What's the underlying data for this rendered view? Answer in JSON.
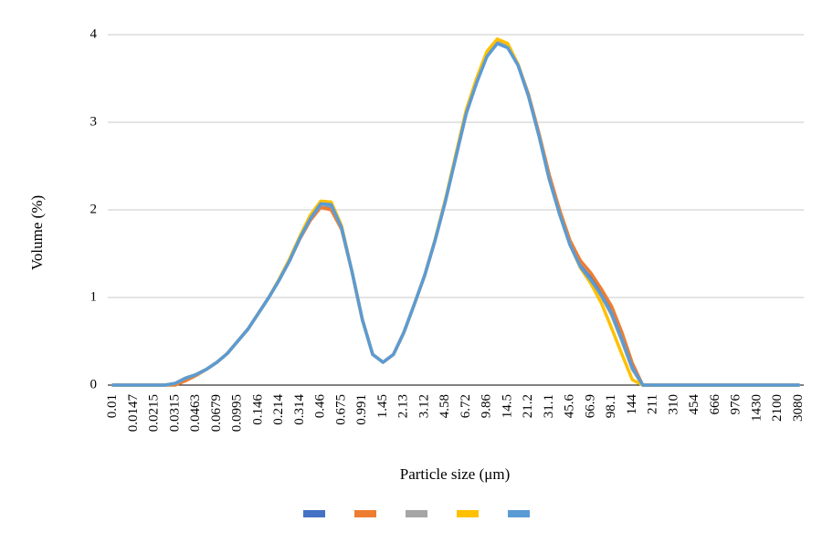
{
  "chart_data": {
    "type": "line",
    "xlabel": "Particle size (μm)",
    "ylabel": "Volume (%)",
    "categories": [
      "0.01",
      null,
      "0.0147",
      null,
      "0.0215",
      null,
      "0.0315",
      null,
      "0.0463",
      null,
      "0.0679",
      null,
      "0.0995",
      null,
      "0.146",
      null,
      "0.214",
      null,
      "0.314",
      null,
      "0.46",
      null,
      "0.675",
      null,
      "0.991",
      null,
      "1.45",
      null,
      "2.13",
      null,
      "3.12",
      null,
      "4.58",
      null,
      "6.72",
      null,
      "9.86",
      null,
      "14.5",
      null,
      "21.2",
      null,
      "31.1",
      null,
      "45.6",
      null,
      "66.9",
      null,
      "98.1",
      null,
      "144",
      null,
      "211",
      null,
      "310",
      null,
      "454",
      null,
      "666",
      null,
      "976",
      null,
      "1430",
      null,
      "2100",
      null,
      "3080"
    ],
    "series": [
      {
        "color": "#4472c4",
        "values": [
          0,
          0,
          0,
          0,
          0,
          0,
          0.02,
          0.08,
          0.12,
          0.18,
          0.26,
          0.36,
          0.5,
          0.64,
          0.82,
          1.0,
          1.2,
          1.42,
          1.68,
          1.9,
          2.06,
          2.04,
          1.8,
          1.3,
          0.75,
          0.35,
          0.26,
          0.35,
          0.6,
          0.92,
          1.25,
          1.65,
          2.1,
          2.6,
          3.1,
          3.45,
          3.76,
          3.9,
          3.86,
          3.65,
          3.3,
          2.85,
          2.35,
          1.95,
          1.6,
          1.36,
          1.22,
          1.06,
          0.86,
          0.55,
          0.2,
          0,
          0,
          0,
          0,
          0,
          0,
          0,
          0,
          0,
          0,
          0,
          0,
          0,
          0,
          0,
          0
        ]
      },
      {
        "color": "#ed7d31",
        "values": [
          0,
          0,
          0,
          0,
          0,
          0,
          0,
          0.05,
          0.11,
          0.18,
          0.26,
          0.36,
          0.5,
          0.64,
          0.82,
          1.0,
          1.2,
          1.42,
          1.67,
          1.88,
          2.03,
          2.0,
          1.78,
          1.3,
          0.75,
          0.35,
          0.26,
          0.35,
          0.6,
          0.92,
          1.25,
          1.65,
          2.1,
          2.6,
          3.1,
          3.46,
          3.77,
          3.91,
          3.87,
          3.66,
          3.32,
          2.88,
          2.4,
          2.0,
          1.65,
          1.42,
          1.28,
          1.1,
          0.9,
          0.6,
          0.25,
          0,
          0,
          0,
          0,
          0,
          0,
          0,
          0,
          0,
          0,
          0,
          0,
          0,
          0,
          0,
          0
        ]
      },
      {
        "color": "#a5a5a5",
        "values": [
          0,
          0,
          0,
          0,
          0,
          0,
          0.02,
          0.08,
          0.12,
          0.18,
          0.26,
          0.36,
          0.5,
          0.64,
          0.82,
          1.0,
          1.2,
          1.42,
          1.68,
          1.9,
          2.06,
          2.05,
          1.8,
          1.3,
          0.75,
          0.35,
          0.26,
          0.35,
          0.6,
          0.92,
          1.25,
          1.65,
          2.1,
          2.6,
          3.1,
          3.46,
          3.78,
          3.92,
          3.87,
          3.65,
          3.3,
          2.85,
          2.35,
          1.95,
          1.6,
          1.35,
          1.2,
          1.02,
          0.8,
          0.5,
          0.18,
          0,
          0,
          0,
          0,
          0,
          0,
          0,
          0,
          0,
          0,
          0,
          0,
          0,
          0,
          0,
          0
        ]
      },
      {
        "color": "#ffc000",
        "values": [
          0,
          0,
          0,
          0,
          0,
          0,
          0.02,
          0.08,
          0.12,
          0.18,
          0.26,
          0.36,
          0.5,
          0.64,
          0.82,
          1.0,
          1.21,
          1.44,
          1.7,
          1.94,
          2.1,
          2.09,
          1.82,
          1.3,
          0.75,
          0.35,
          0.26,
          0.35,
          0.6,
          0.92,
          1.25,
          1.66,
          2.12,
          2.63,
          3.14,
          3.5,
          3.81,
          3.95,
          3.9,
          3.66,
          3.3,
          2.85,
          2.35,
          1.95,
          1.6,
          1.34,
          1.16,
          0.94,
          0.65,
          0.35,
          0.06,
          0,
          0,
          0,
          0,
          0,
          0,
          0,
          0,
          0,
          0,
          0,
          0,
          0,
          0,
          0,
          0
        ]
      },
      {
        "color": "#5b9bd5",
        "values": [
          0,
          0,
          0,
          0,
          0,
          0,
          0.02,
          0.08,
          0.12,
          0.18,
          0.26,
          0.36,
          0.5,
          0.64,
          0.82,
          1.0,
          1.2,
          1.42,
          1.68,
          1.9,
          2.07,
          2.06,
          1.8,
          1.3,
          0.75,
          0.35,
          0.26,
          0.35,
          0.6,
          0.92,
          1.25,
          1.65,
          2.1,
          2.6,
          3.1,
          3.45,
          3.75,
          3.9,
          3.85,
          3.65,
          3.3,
          2.85,
          2.35,
          1.95,
          1.6,
          1.35,
          1.2,
          1.03,
          0.82,
          0.52,
          0.2,
          0,
          0,
          0,
          0,
          0,
          0,
          0,
          0,
          0,
          0,
          0,
          0,
          0,
          0,
          0,
          0
        ]
      }
    ],
    "ylim": [
      0,
      4
    ],
    "yticks": [
      0,
      1,
      2,
      3,
      4
    ],
    "grid": true,
    "legend": "bottom"
  }
}
